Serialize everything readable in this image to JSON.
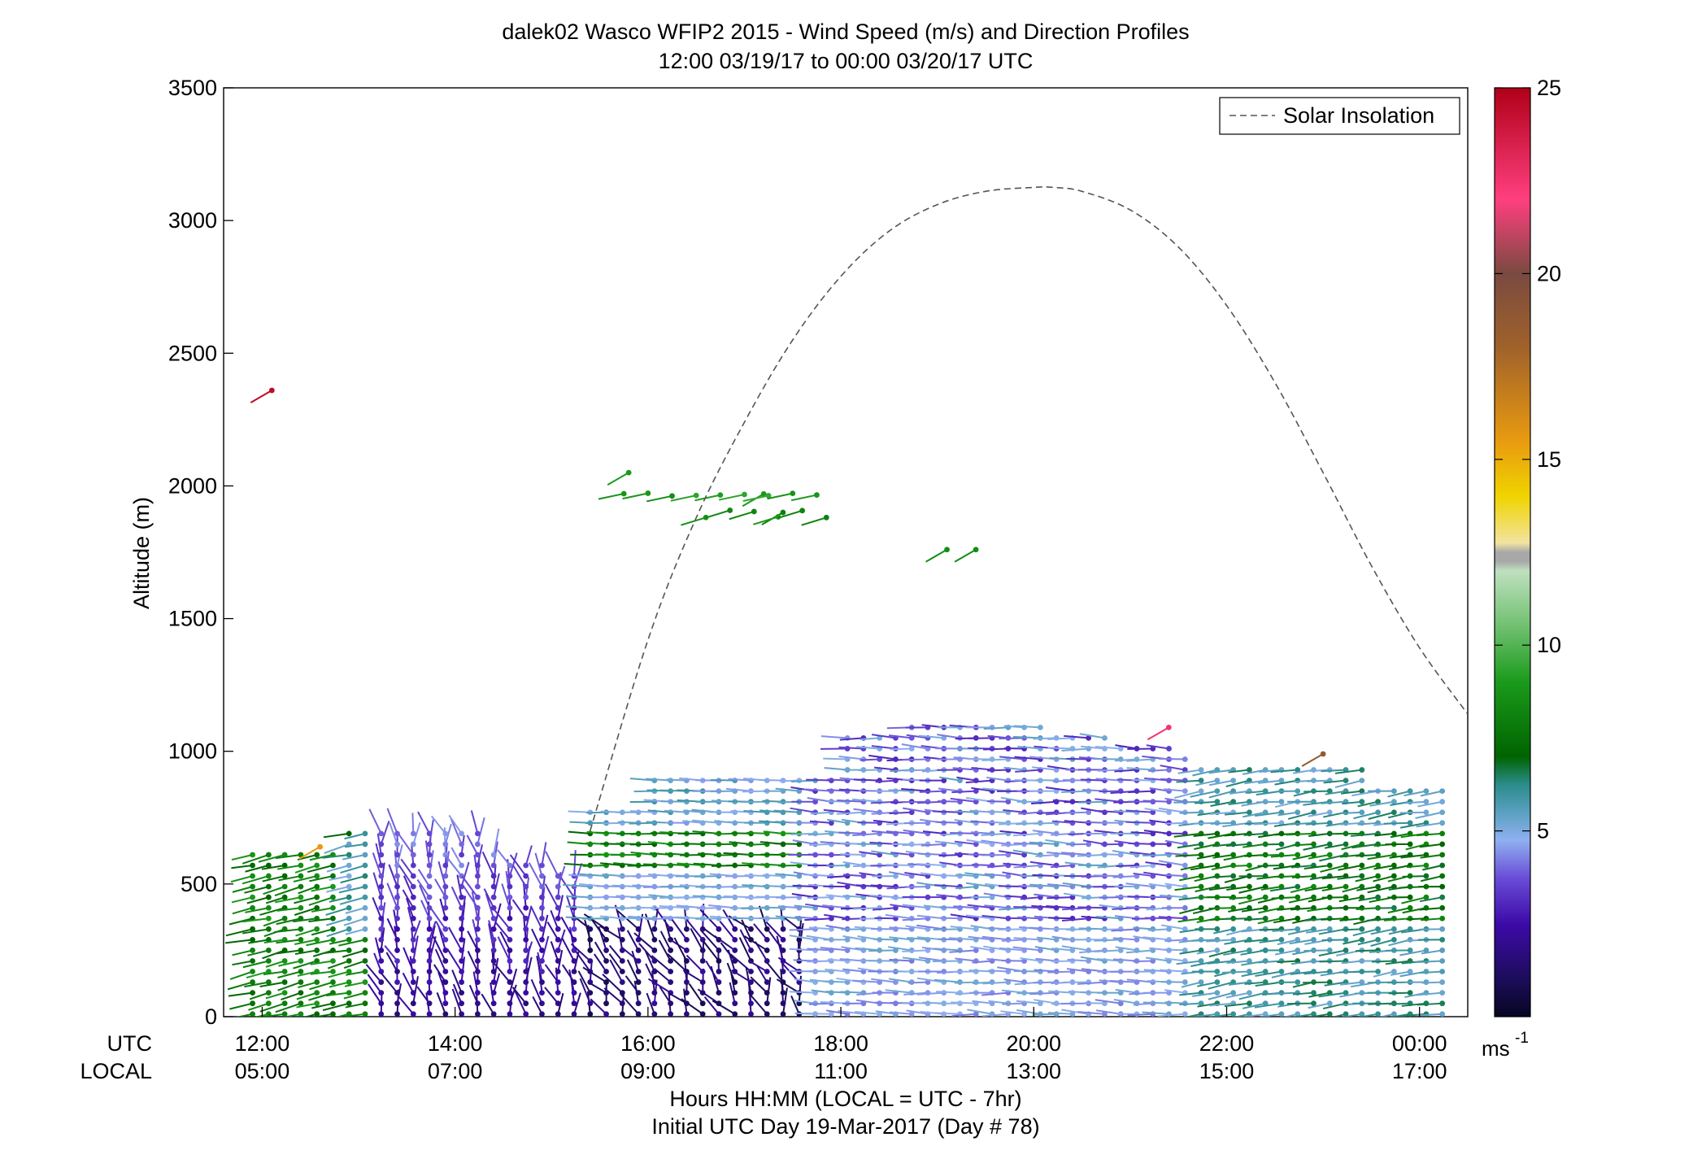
{
  "chart_data": {
    "type": "scatter",
    "title": "dalek02 Wasco WFIP2 2015 - Wind Speed (m/s) and Direction Profiles",
    "subtitle": "12:00 03/19/17 to 00:00 03/20/17  UTC",
    "ylabel": "Altitude (m)",
    "ylim": [
      0,
      3500
    ],
    "xlim_utc_hours": [
      11.6,
      24.5
    ],
    "y_ticks": [
      "0",
      "500",
      "1000",
      "1500",
      "2000",
      "2500",
      "3000",
      "3500"
    ],
    "x_ticks": [
      {
        "utc": "12:00",
        "local": "05:00",
        "hour": 12
      },
      {
        "utc": "14:00",
        "local": "07:00",
        "hour": 14
      },
      {
        "utc": "16:00",
        "local": "09:00",
        "hour": 16
      },
      {
        "utc": "18:00",
        "local": "11:00",
        "hour": 18
      },
      {
        "utc": "20:00",
        "local": "13:00",
        "hour": 20
      },
      {
        "utc": "22:00",
        "local": "15:00",
        "hour": 22
      },
      {
        "utc": "00:00",
        "local": "17:00",
        "hour": 24
      }
    ],
    "x_row_labels": [
      "UTC",
      "LOCAL"
    ],
    "xlabel_line1": "Hours HH:MM  (LOCAL = UTC - 7hr)",
    "xlabel_line2": "Initial UTC Day 19-Mar-2017 (Day # 78)",
    "legend": {
      "label": "Solar Insolation",
      "placement": "top-right"
    },
    "solar_insolation": {
      "x_hours": [
        15.4,
        16.0,
        16.5,
        17.0,
        17.5,
        18.0,
        18.5,
        19.0,
        19.5,
        20.0,
        20.2,
        20.5,
        21.0,
        21.5,
        22.0,
        22.5,
        23.0,
        23.5,
        24.0,
        24.5
      ],
      "y_m": [
        700,
        1420,
        1880,
        2240,
        2550,
        2790,
        2960,
        3060,
        3110,
        3125,
        3125,
        3110,
        3040,
        2900,
        2680,
        2390,
        2050,
        1700,
        1390,
        1140
      ]
    },
    "colorbar": {
      "unit_label": "ms",
      "unit_exponent": "-1",
      "range": [
        0,
        25
      ],
      "ticks": [
        "5",
        "10",
        "15",
        "20",
        "25"
      ]
    },
    "wind_profiles_summary": {
      "low_level_times_h": [
        11.9,
        24.3
      ],
      "low_level_step_h": 0.1667,
      "max_altitude_m": 1200,
      "isolated_barbs": [
        {
          "t": 12.1,
          "alt": 2360,
          "speed": 24.5
        },
        {
          "t": 15.8,
          "alt": 2050,
          "speed": 9
        },
        {
          "t": 17.2,
          "alt": 1970,
          "speed": 9
        },
        {
          "t": 17.4,
          "alt": 1900,
          "speed": 8
        },
        {
          "t": 19.1,
          "alt": 1760,
          "speed": 8.5
        },
        {
          "t": 19.4,
          "alt": 1760,
          "speed": 8.5
        },
        {
          "t": 21.4,
          "alt": 1090,
          "speed": 22.5
        },
        {
          "t": 23.0,
          "alt": 990,
          "speed": 19
        },
        {
          "t": 12.6,
          "alt": 640,
          "speed": 16
        }
      ]
    }
  }
}
